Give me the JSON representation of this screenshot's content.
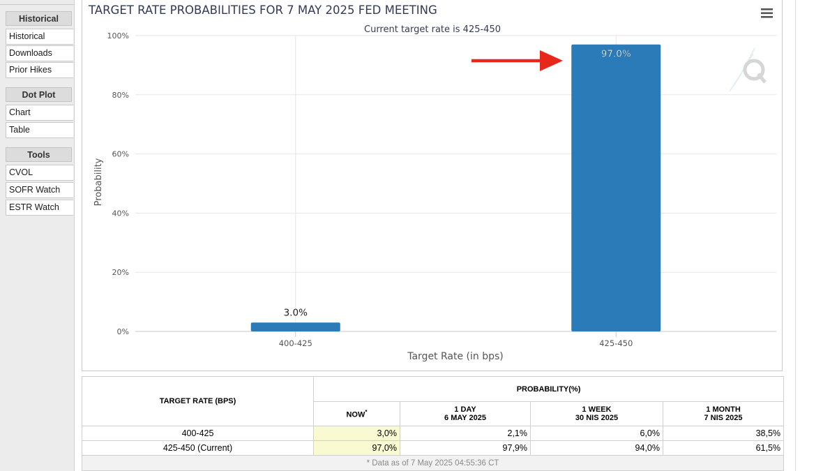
{
  "sidebar": {
    "groups": [
      {
        "title": "Historical",
        "items": [
          "Historical",
          "Downloads",
          "Prior Hikes"
        ]
      },
      {
        "title": "Dot Plot",
        "items": [
          "Chart",
          "Table"
        ]
      },
      {
        "title": "Tools",
        "items": [
          "CVOL",
          "SOFR Watch",
          "ESTR Watch"
        ]
      }
    ]
  },
  "chart": {
    "menu_icon": "hamburger-menu-icon",
    "watermark_icon": "q-logo-icon",
    "bar_color": "#2b7bb9",
    "arrow_color": "#e8271b"
  },
  "chart_data": {
    "type": "bar",
    "title": "TARGET RATE PROBABILITIES FOR 7 MAY 2025 FED MEETING",
    "subtitle": "Current target rate is 425-450",
    "categories": [
      "400-425",
      "425-450"
    ],
    "values": [
      3.0,
      97.0
    ],
    "data_labels": [
      "3.0%",
      "97.0%"
    ],
    "xlabel": "Target Rate (in bps)",
    "ylabel": "Probability",
    "ylim": [
      0,
      100
    ],
    "yticks": [
      0,
      20,
      40,
      60,
      80,
      100
    ],
    "ytick_labels": [
      "0%",
      "20%",
      "40%",
      "60%",
      "80%",
      "100%"
    ],
    "grid": true
  },
  "table": {
    "header_rate": "TARGET RATE (BPS)",
    "header_prob": "PROBABILITY(%)",
    "columns": [
      {
        "line1": "NOW",
        "line2": ""
      },
      {
        "line1": "1 DAY",
        "line2": "6 MAY 2025"
      },
      {
        "line1": "1 WEEK",
        "line2": "30 NIS 2025"
      },
      {
        "line1": "1 MONTH",
        "line2": "7 NIS 2025"
      }
    ],
    "now_marker": "*",
    "rows": [
      {
        "rate": "400-425",
        "values": [
          "3,0%",
          "2,1%",
          "6,0%",
          "38,5%"
        ]
      },
      {
        "rate": "425-450 (Current)",
        "values": [
          "97,0%",
          "97,9%",
          "94,0%",
          "61,5%"
        ]
      }
    ],
    "note": "* Data as of 7 May 2025 04:55:36 CT"
  }
}
